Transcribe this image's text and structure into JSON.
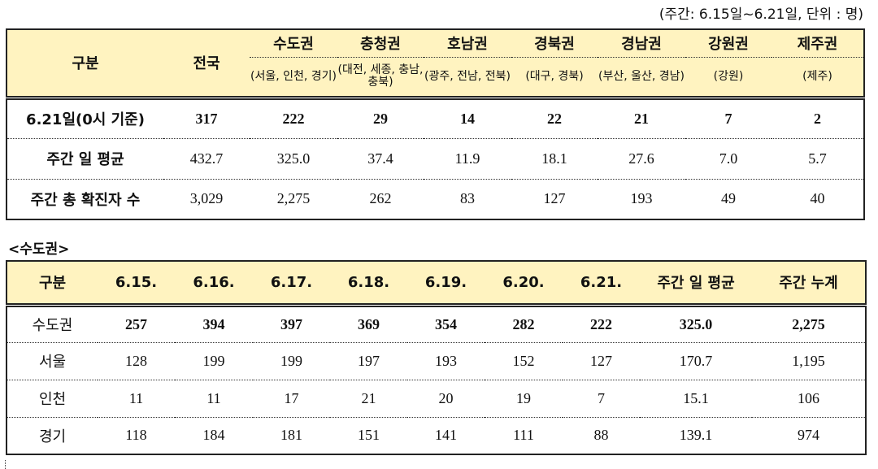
{
  "unit_note": "(주간: 6.15일~6.21일, 단위 : 명)",
  "table1": {
    "header": {
      "col_label": "구분",
      "national": "전국",
      "regions": [
        {
          "name": "수도권",
          "sub": "(서울, 인천, 경기)"
        },
        {
          "name": "충청권",
          "sub": "(대전, 세종, 충남, 충북)"
        },
        {
          "name": "호남권",
          "sub": "(광주, 전남, 전북)"
        },
        {
          "name": "경북권",
          "sub": "(대구, 경북)"
        },
        {
          "name": "경남권",
          "sub": "(부산, 울산, 경남)"
        },
        {
          "name": "강원권",
          "sub": "(강원)"
        },
        {
          "name": "제주권",
          "sub": "(제주)"
        }
      ]
    },
    "rows": [
      {
        "label": "6.21일(0시 기준)",
        "values": [
          "317",
          "222",
          "29",
          "14",
          "22",
          "21",
          "7",
          "2"
        ]
      },
      {
        "label": "주간 일 평균",
        "values": [
          "432.7",
          "325.0",
          "37.4",
          "11.9",
          "18.1",
          "27.6",
          "7.0",
          "5.7"
        ]
      },
      {
        "label": "주간 총 확진자 수",
        "values": [
          "3,029",
          "2,275",
          "262",
          "83",
          "127",
          "193",
          "49",
          "40"
        ]
      }
    ]
  },
  "section_title": "<수도권>",
  "table2": {
    "header": [
      "구분",
      "6.15.",
      "6.16.",
      "6.17.",
      "6.18.",
      "6.19.",
      "6.20.",
      "6.21.",
      "주간 일 평균",
      "주간 누계"
    ],
    "rows": [
      {
        "label": "수도권",
        "values": [
          "257",
          "394",
          "397",
          "369",
          "354",
          "282",
          "222",
          "325.0",
          "2,275"
        ]
      },
      {
        "label": "서울",
        "values": [
          "128",
          "199",
          "199",
          "197",
          "193",
          "152",
          "127",
          "170.7",
          "1,195"
        ]
      },
      {
        "label": "인천",
        "values": [
          "11",
          "11",
          "17",
          "21",
          "20",
          "19",
          "7",
          "15.1",
          "106"
        ]
      },
      {
        "label": "경기",
        "values": [
          "118",
          "184",
          "181",
          "151",
          "141",
          "111",
          "88",
          "139.1",
          "974"
        ]
      }
    ]
  }
}
